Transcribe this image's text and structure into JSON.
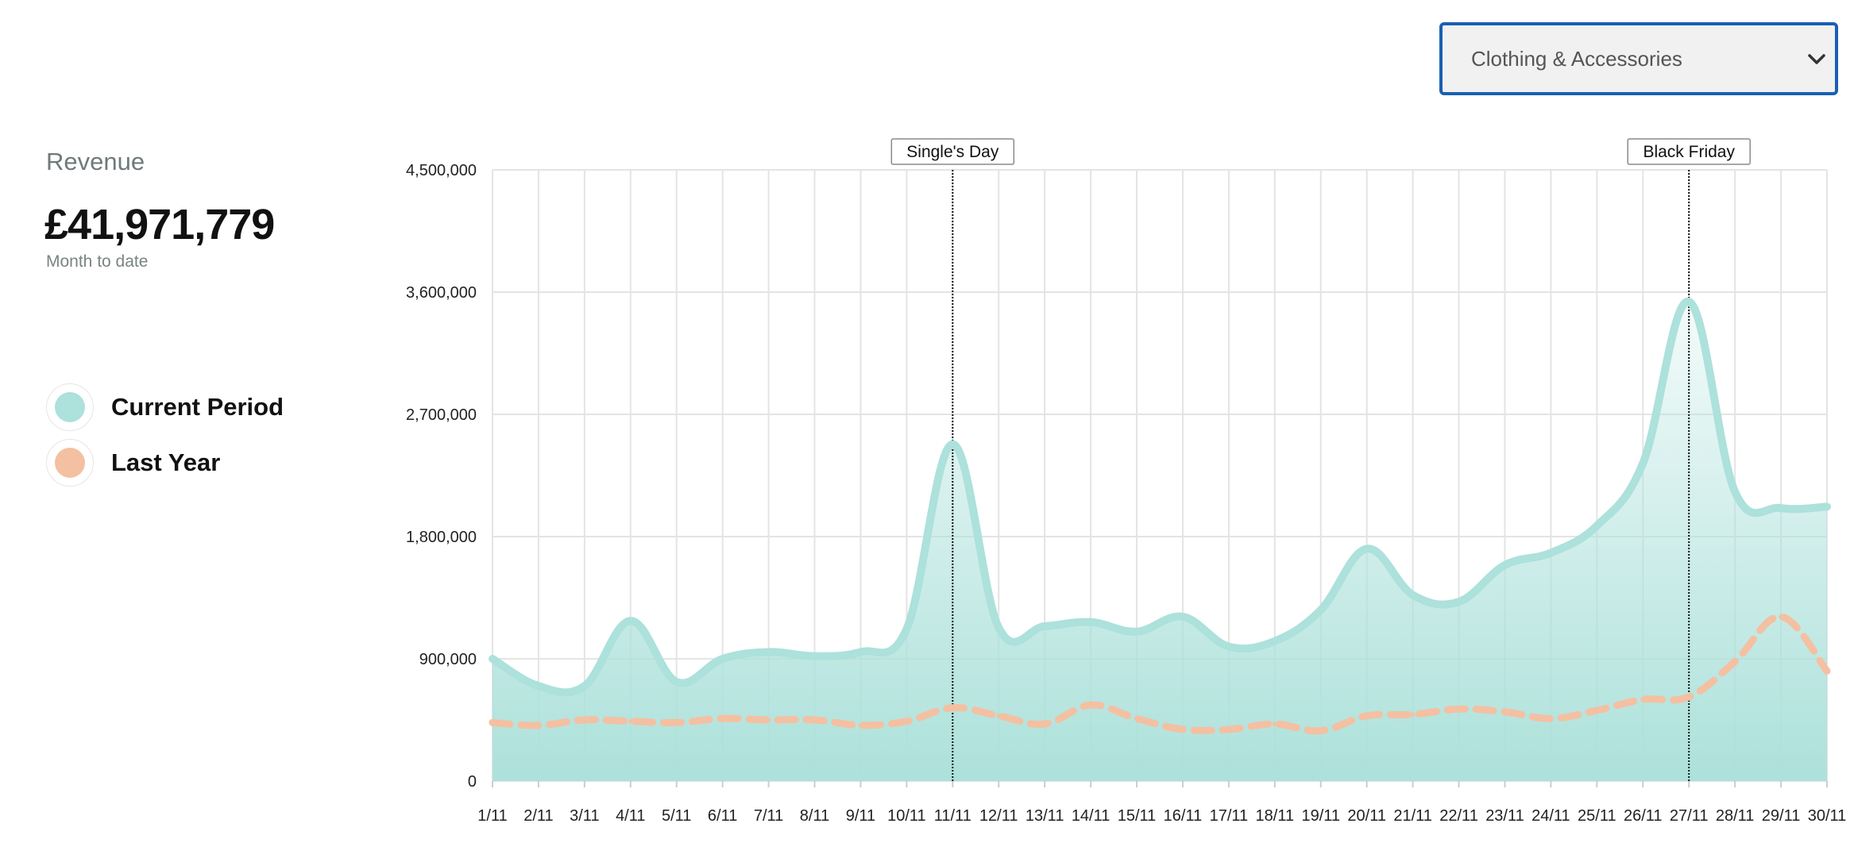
{
  "filter": {
    "selected": "Clothing & Accessories"
  },
  "summary": {
    "label": "Revenue",
    "value": "£41,971,779",
    "sublabel": "Month to date"
  },
  "legend": [
    {
      "label": "Current Period",
      "color": "#ade1db"
    },
    {
      "label": "Last Year",
      "color": "#f4c0a2"
    }
  ],
  "chart_data": {
    "type": "area",
    "x": [
      "1/11",
      "2/11",
      "3/11",
      "4/11",
      "5/11",
      "6/11",
      "7/11",
      "8/11",
      "9/11",
      "10/11",
      "11/11",
      "12/11",
      "13/11",
      "14/11",
      "15/11",
      "16/11",
      "17/11",
      "18/11",
      "19/11",
      "20/11",
      "21/11",
      "22/11",
      "23/11",
      "24/11",
      "25/11",
      "26/11",
      "27/11",
      "28/11",
      "29/11",
      "30/11"
    ],
    "series": [
      {
        "name": "Current Period",
        "style": "solid-filled",
        "color": "#ade1db",
        "values": [
          900000,
          700000,
          700000,
          1180000,
          730000,
          900000,
          950000,
          920000,
          950000,
          1120000,
          2480000,
          1130000,
          1140000,
          1170000,
          1100000,
          1210000,
          990000,
          1030000,
          1260000,
          1710000,
          1370000,
          1320000,
          1590000,
          1680000,
          1880000,
          2340000,
          3530000,
          2130000,
          2010000,
          2020000
        ]
      },
      {
        "name": "Last Year",
        "style": "dashed",
        "color": "#f4c0a2",
        "values": [
          430000,
          410000,
          450000,
          440000,
          430000,
          460000,
          450000,
          450000,
          410000,
          440000,
          540000,
          480000,
          420000,
          560000,
          460000,
          380000,
          380000,
          420000,
          370000,
          480000,
          490000,
          530000,
          510000,
          460000,
          520000,
          600000,
          620000,
          880000,
          1210000,
          810000
        ]
      }
    ],
    "ylim": [
      0,
      4500000
    ],
    "yticks": [
      "0",
      "900,000",
      "1,800,000",
      "2,700,000",
      "3,600,000",
      "4,500,000"
    ],
    "ytick_values": [
      0,
      900000,
      1800000,
      2700000,
      3600000,
      4500000
    ],
    "annotations": [
      {
        "label": "Single's Day",
        "x": "11/11"
      },
      {
        "label": "Black Friday",
        "x": "27/11"
      }
    ],
    "grid": true
  }
}
